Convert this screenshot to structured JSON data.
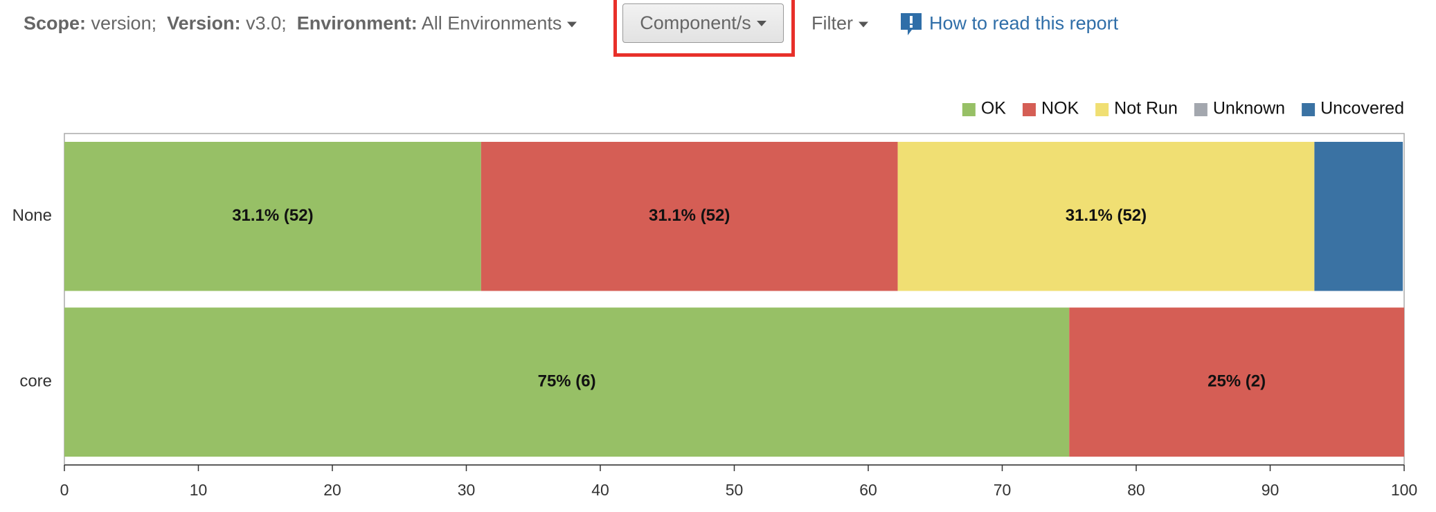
{
  "toolbar": {
    "scope_label": "Scope:",
    "scope_value": "version;",
    "version_label": "Version:",
    "version_value": "v3.0;",
    "environment_label": "Environment:",
    "environment_value": "All Environments",
    "component_button": "Component/s",
    "filter": "Filter",
    "help_link": "How to read this report"
  },
  "chart_data": {
    "type": "bar",
    "orientation": "horizontal",
    "stacked": true,
    "categories": [
      "None",
      "core"
    ],
    "series": [
      {
        "name": "OK",
        "color": "#97c066",
        "values": [
          31.1,
          75
        ],
        "value_labels": [
          "31.1% (52)",
          "75% (6)"
        ]
      },
      {
        "name": "NOK",
        "color": "#d55e55",
        "values": [
          31.1,
          25
        ],
        "value_labels": [
          "31.1% (52)",
          "25% (2)"
        ]
      },
      {
        "name": "Not Run",
        "color": "#f0df73",
        "values": [
          31.1,
          0
        ],
        "value_labels": [
          "31.1% (52)",
          null
        ]
      },
      {
        "name": "Unknown",
        "color": "#a3a7ae",
        "values": [
          0,
          0
        ],
        "value_labels": [
          null,
          null
        ]
      },
      {
        "name": "Uncovered",
        "color": "#3a72a3",
        "values": [
          6.6,
          0
        ],
        "value_labels": [
          null,
          null
        ]
      }
    ],
    "xlim": [
      0,
      100
    ],
    "xticks": [
      0,
      10,
      20,
      30,
      40,
      50,
      60,
      70,
      80,
      90,
      100
    ],
    "legend": "top-right"
  }
}
